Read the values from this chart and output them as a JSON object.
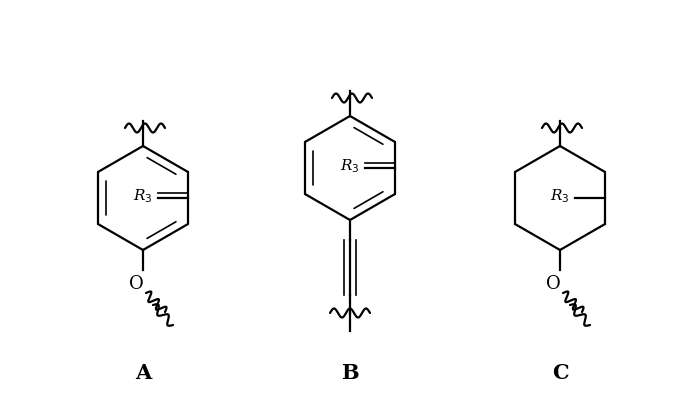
{
  "background": "#ffffff",
  "lw": 1.6,
  "lw_thin": 1.2,
  "label_A": "A",
  "label_B": "B",
  "label_C": "C",
  "figw": 7.0,
  "figh": 4.08,
  "dpi": 100
}
